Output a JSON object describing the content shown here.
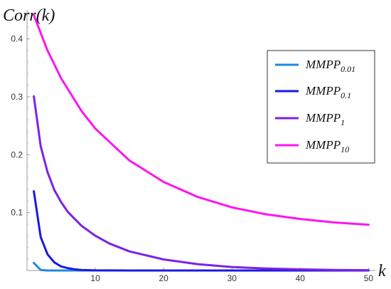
{
  "chart_data": {
    "type": "line",
    "ylabel": "Corr(k)",
    "xlabel": "k",
    "xlim": [
      0,
      51
    ],
    "ylim": [
      0,
      0.45
    ],
    "x_ticks": [
      10,
      20,
      30,
      40,
      50
    ],
    "x_tick_labels": [
      "10",
      "20",
      "30",
      "40",
      "50"
    ],
    "y_ticks": [
      0.1,
      0.2,
      0.3,
      0.4
    ],
    "y_tick_labels": [
      "0.1",
      "0.2",
      "0.3",
      "0.4"
    ],
    "grid": false,
    "legend_position": "top-right",
    "series": [
      {
        "name": "MMPP",
        "subscript": "0.01",
        "color": "#1e88e5",
        "x": [
          1,
          2,
          3,
          4,
          50
        ],
        "y": [
          0.013,
          0.001,
          0.0,
          0.0,
          0.0
        ]
      },
      {
        "name": "MMPP",
        "subscript": "0.1",
        "color": "#1a1adf",
        "x": [
          1,
          2,
          3,
          4,
          5,
          6,
          7,
          8,
          10,
          15,
          20,
          30,
          40,
          50
        ],
        "y": [
          0.137,
          0.058,
          0.028,
          0.014,
          0.007,
          0.004,
          0.002,
          0.001,
          0.0003,
          0.0,
          0.0,
          0.0,
          0.0,
          0.0
        ]
      },
      {
        "name": "MMPP",
        "subscript": "1",
        "color": "#7b22e6",
        "x": [
          1,
          2,
          3,
          4,
          5,
          6,
          8,
          10,
          12,
          15,
          20,
          25,
          30,
          35,
          40,
          45,
          50
        ],
        "y": [
          0.301,
          0.215,
          0.17,
          0.139,
          0.118,
          0.101,
          0.077,
          0.06,
          0.047,
          0.033,
          0.019,
          0.011,
          0.006,
          0.0035,
          0.002,
          0.001,
          0.0005
        ]
      },
      {
        "name": "MMPP",
        "subscript": "10",
        "color": "#ff14f0",
        "x": [
          1,
          3,
          5,
          8,
          10,
          15,
          20,
          25,
          30,
          35,
          40,
          45,
          50
        ],
        "y": [
          0.441,
          0.38,
          0.332,
          0.275,
          0.245,
          0.19,
          0.153,
          0.127,
          0.109,
          0.097,
          0.089,
          0.083,
          0.079
        ]
      }
    ]
  }
}
